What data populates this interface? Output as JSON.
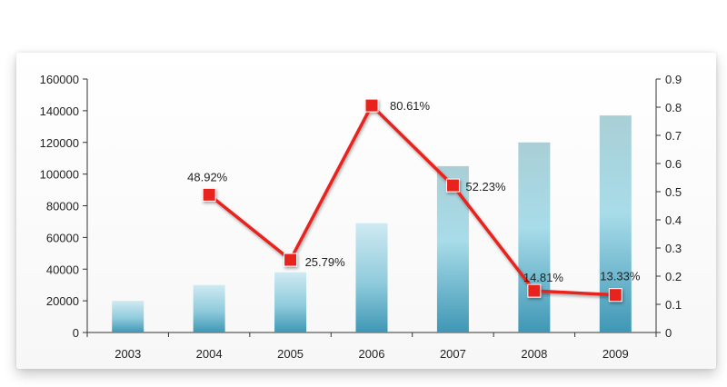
{
  "chart_data": {
    "type": "bar",
    "title": "",
    "xlabel": "",
    "ylabel": "",
    "categories": [
      "2003",
      "2004",
      "2005",
      "2006",
      "2007",
      "2008",
      "2009"
    ],
    "ylim": [
      0,
      160000
    ],
    "y2lim": [
      0,
      0.9
    ],
    "yticks": [
      "0",
      "20000",
      "40000",
      "60000",
      "80000",
      "100000",
      "120000",
      "140000",
      "160000"
    ],
    "y2ticks": [
      "0",
      "0.1",
      "0.2",
      "0.3",
      "0.4",
      "0.5",
      "0.6",
      "0.7",
      "0.8",
      "0.9"
    ],
    "grid": false,
    "series": [
      {
        "type": "bar",
        "axis": "left",
        "values": [
          20000,
          30000,
          38000,
          69000,
          105000,
          120000,
          137000
        ],
        "color": "#63afc7"
      },
      {
        "type": "line",
        "axis": "right",
        "values": [
          null,
          0.4892,
          0.2579,
          0.8061,
          0.5223,
          0.1481,
          0.1333
        ],
        "labels": [
          "",
          "48.92%",
          "25.79%",
          "80.61%",
          "52.23%",
          "14.81%",
          "13.33%"
        ],
        "color": "#e8241b",
        "marker": "square"
      }
    ]
  }
}
